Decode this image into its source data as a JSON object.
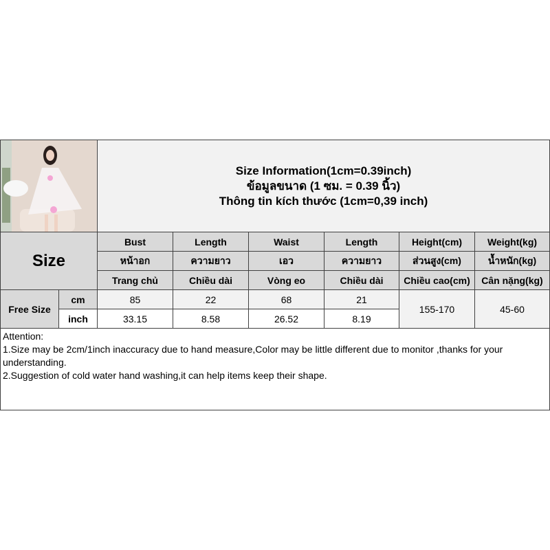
{
  "title_lines": [
    "Size Information(1cm=0.39inch)",
    "ข้อมูลขนาด (1 ซม. = 0.39 นิ้ว)",
    "Thông tin kích thước (1cm=0,39 inch)"
  ],
  "size_label": "Size",
  "columns": [
    {
      "en": "Bust",
      "th": "หน้าอก",
      "vi": "Trang chủ"
    },
    {
      "en": "Length",
      "th": "ความยาว",
      "vi": "Chiều dài"
    },
    {
      "en": "Waist",
      "th": "เอว",
      "vi": "Vòng eo"
    },
    {
      "en": "Length",
      "th": "ความยาว",
      "vi": "Chiều dài"
    },
    {
      "en": "Height(cm)",
      "th": "ส่วนสูง(cm)",
      "vi": "Chiều cao(cm)"
    },
    {
      "en": "Weight(kg)",
      "th": "น้ำหนัก(kg)",
      "vi": "Cân nặng(kg)"
    }
  ],
  "row_label": "Free Size",
  "units": {
    "cm": "cm",
    "inch": "inch"
  },
  "cm_values": [
    "85",
    "22",
    "68",
    "21"
  ],
  "inch_values": [
    "33.15",
    "8.58",
    "26.52",
    "8.19"
  ],
  "height_range": "155-170",
  "weight_range": "45-60",
  "attention": {
    "heading": "Attention:",
    "line1": "1.Size may be 2cm/1inch inaccuracy due to hand measure,Color may be little different due to monitor ,thanks for your understanding.",
    "line2": "2.Suggestion of cold water hand washing,it can help items keep their shape."
  }
}
